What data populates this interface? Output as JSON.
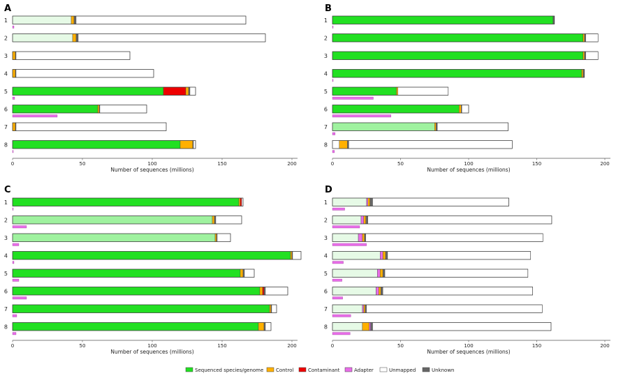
{
  "colors": {
    "sequenced": "#22e022",
    "sequenced_light": "#9ff29f",
    "sequenced_pale": "#e6fae6",
    "control": "#ffb000",
    "contaminant": "#ee0000",
    "adapter": "#e86de8",
    "unmapped": "#ffffff",
    "unknown": "#666666"
  },
  "legend": [
    {
      "key": "sequenced",
      "label": "Sequenced species/genome"
    },
    {
      "key": "control",
      "label": "Control"
    },
    {
      "key": "contaminant",
      "label": "Contaminant"
    },
    {
      "key": "adapter",
      "label": "Adapter"
    },
    {
      "key": "unmapped",
      "label": "Unmapped"
    },
    {
      "key": "unknown",
      "label": "Unknown"
    }
  ],
  "chart_data": [
    {
      "panel": "A",
      "type": "bar",
      "stacked": true,
      "orientation": "horizontal",
      "xlabel": "Number of sequences (millions)",
      "xlim": [
        0,
        200
      ],
      "xticks": [
        "0",
        "50",
        "100",
        "150",
        "200"
      ],
      "categories": [
        "1",
        "2",
        "3",
        "4",
        "5",
        "6",
        "7",
        "8"
      ],
      "series": [
        {
          "name": "Sequenced species/genome",
          "shade": "sequenced_pale",
          "rows": [
            0,
            1
          ]
        },
        {
          "name": "Sequenced species/genome",
          "shade": "sequenced",
          "rows": [
            4,
            5,
            7
          ]
        }
      ],
      "bars": [
        {
          "seg": [
            [
              "sequenced_pale",
              42
            ],
            [
              "control",
              2
            ],
            [
              "unknown",
              1.5
            ],
            [
              "unmapped",
              121.5
            ]
          ],
          "adapter": 1
        },
        {
          "seg": [
            [
              "sequenced_pale",
              43
            ],
            [
              "control",
              2.5
            ],
            [
              "unknown",
              1.5
            ],
            [
              "unmapped",
              134
            ]
          ],
          "adapter": 0
        },
        {
          "seg": [
            [
              "control",
              2
            ],
            [
              "unknown",
              0.5
            ],
            [
              "unmapped",
              81.5
            ]
          ],
          "adapter": 0
        },
        {
          "seg": [
            [
              "control",
              2
            ],
            [
              "unknown",
              0.5
            ],
            [
              "unmapped",
              98.5
            ]
          ],
          "adapter": 0
        },
        {
          "seg": [
            [
              "sequenced",
              108
            ],
            [
              "contaminant",
              16
            ],
            [
              "control",
              2
            ],
            [
              "unknown",
              1
            ],
            [
              "unmapped",
              4
            ]
          ],
          "adapter": 1.5
        },
        {
          "seg": [
            [
              "sequenced",
              61
            ],
            [
              "control",
              1
            ],
            [
              "unknown",
              0.5
            ],
            [
              "unmapped",
              33.5
            ]
          ],
          "adapter": 32
        },
        {
          "seg": [
            [
              "control",
              2
            ],
            [
              "unknown",
              0.5
            ],
            [
              "unmapped",
              107.5
            ]
          ],
          "adapter": 0
        },
        {
          "seg": [
            [
              "sequenced",
              120
            ],
            [
              "control",
              9
            ],
            [
              "unknown",
              0.5
            ],
            [
              "unmapped",
              1.5
            ]
          ],
          "adapter": 0.5
        }
      ]
    },
    {
      "panel": "B",
      "type": "bar",
      "stacked": true,
      "orientation": "horizontal",
      "xlabel": "Number of sequences (millions)",
      "xlim": [
        0,
        200
      ],
      "xticks": [
        "0",
        "50",
        "100",
        "150",
        "200"
      ],
      "categories": [
        "1",
        "2",
        "3",
        "4",
        "5",
        "6",
        "7",
        "8"
      ],
      "bars": [
        {
          "seg": [
            [
              "sequenced",
              162
            ],
            [
              "unknown",
              1
            ]
          ],
          "adapter": 0.5
        },
        {
          "seg": [
            [
              "sequenced",
              184
            ],
            [
              "control",
              1
            ],
            [
              "unknown",
              1
            ],
            [
              "unmapped",
              9
            ]
          ],
          "adapter": 0
        },
        {
          "seg": [
            [
              "sequenced",
              184
            ],
            [
              "control",
              1
            ],
            [
              "unknown",
              1
            ],
            [
              "unmapped",
              9
            ]
          ],
          "adapter": 0
        },
        {
          "seg": [
            [
              "sequenced",
              183
            ],
            [
              "control",
              1
            ],
            [
              "unknown",
              1
            ]
          ],
          "adapter": 0.5
        },
        {
          "seg": [
            [
              "sequenced",
              47
            ],
            [
              "control",
              1
            ],
            [
              "unmapped",
              37
            ]
          ],
          "adapter": 30
        },
        {
          "seg": [
            [
              "sequenced",
              93
            ],
            [
              "control",
              1.5
            ],
            [
              "unknown",
              0.5
            ],
            [
              "unmapped",
              5
            ]
          ],
          "adapter": 43
        },
        {
          "seg": [
            [
              "sequenced_light",
              75
            ],
            [
              "control",
              1
            ],
            [
              "unknown",
              1
            ],
            [
              "unmapped",
              52
            ]
          ],
          "adapter": 2
        },
        {
          "seg": [
            [
              "unmapped",
              5
            ],
            [
              "control",
              6
            ],
            [
              "unknown",
              1
            ],
            [
              "unmapped",
              120
            ]
          ],
          "adapter": 1.5
        }
      ]
    },
    {
      "panel": "C",
      "type": "bar",
      "stacked": true,
      "orientation": "horizontal",
      "xlabel": "Number of sequences (millions)",
      "xlim": [
        0,
        200
      ],
      "xticks": [
        "0",
        "50",
        "100",
        "150",
        "200"
      ],
      "categories": [
        "1",
        "2",
        "3",
        "4",
        "5",
        "6",
        "7",
        "8"
      ],
      "bars": [
        {
          "seg": [
            [
              "sequenced",
              162
            ],
            [
              "control",
              1
            ],
            [
              "contaminant",
              1
            ],
            [
              "unmapped",
              1
            ]
          ],
          "adapter": 0.5
        },
        {
          "seg": [
            [
              "sequenced_light",
              143
            ],
            [
              "control",
              1.5
            ],
            [
              "unknown",
              1
            ],
            [
              "unmapped",
              18.5
            ]
          ],
          "adapter": 10
        },
        {
          "seg": [
            [
              "sequenced_light",
              145
            ],
            [
              "control",
              1
            ],
            [
              "unknown",
              0.5
            ],
            [
              "unmapped",
              9.5
            ]
          ],
          "adapter": 4.5
        },
        {
          "seg": [
            [
              "sequenced",
              199
            ],
            [
              "control",
              1
            ],
            [
              "unknown",
              0.5
            ],
            [
              "unmapped",
              6
            ]
          ],
          "adapter": 1
        },
        {
          "seg": [
            [
              "sequenced",
              163
            ],
            [
              "control",
              2
            ],
            [
              "unknown",
              1
            ],
            [
              "unmapped",
              7
            ]
          ],
          "adapter": 4.5
        },
        {
          "seg": [
            [
              "sequenced",
              177
            ],
            [
              "control",
              2
            ],
            [
              "contaminant",
              1
            ],
            [
              "unknown",
              1
            ],
            [
              "unmapped",
              16
            ]
          ],
          "adapter": 10
        },
        {
          "seg": [
            [
              "sequenced",
              184
            ],
            [
              "control",
              1
            ],
            [
              "unknown",
              0.5
            ],
            [
              "unmapped",
              3.5
            ]
          ],
          "adapter": 3
        },
        {
          "seg": [
            [
              "sequenced",
              176
            ],
            [
              "control",
              4
            ],
            [
              "unknown",
              1
            ],
            [
              "unmapped",
              4
            ]
          ],
          "adapter": 2.5
        }
      ]
    },
    {
      "panel": "D",
      "type": "bar",
      "stacked": true,
      "orientation": "horizontal",
      "xlabel": "Number of sequences (millions)",
      "xlim": [
        0,
        200
      ],
      "xticks": [
        "0",
        "50",
        "100",
        "150",
        "200"
      ],
      "categories": [
        "1",
        "2",
        "3",
        "4",
        "5",
        "6",
        "7",
        "8"
      ],
      "bars": [
        {
          "seg": [
            [
              "sequenced_pale",
              25
            ],
            [
              "adapter",
              1
            ],
            [
              "control",
              1.5
            ],
            [
              "unknown",
              2
            ],
            [
              "unmapped",
              100
            ]
          ],
          "adapter": 9
        },
        {
          "seg": [
            [
              "sequenced_pale",
              21
            ],
            [
              "adapter",
              2
            ],
            [
              "control",
              1.5
            ],
            [
              "unknown",
              1.5
            ],
            [
              "unmapped",
              135
            ]
          ],
          "adapter": 20
        },
        {
          "seg": [
            [
              "sequenced_pale",
              19
            ],
            [
              "adapter",
              3
            ],
            [
              "control",
              1.5
            ],
            [
              "unknown",
              1
            ],
            [
              "unmapped",
              130
            ]
          ],
          "adapter": 25
        },
        {
          "seg": [
            [
              "sequenced_pale",
              35
            ],
            [
              "adapter",
              2
            ],
            [
              "control",
              2
            ],
            [
              "unknown",
              1.5
            ],
            [
              "unmapped",
              105
            ]
          ],
          "adapter": 8
        },
        {
          "seg": [
            [
              "sequenced_pale",
              33
            ],
            [
              "adapter",
              2
            ],
            [
              "control",
              2
            ],
            [
              "unknown",
              1.5
            ],
            [
              "unmapped",
              105
            ]
          ],
          "adapter": 7
        },
        {
          "seg": [
            [
              "sequenced_pale",
              32
            ],
            [
              "adapter",
              2
            ],
            [
              "control",
              1.5
            ],
            [
              "unknown",
              1.5
            ],
            [
              "unmapped",
              110
            ]
          ],
          "adapter": 7.5
        },
        {
          "seg": [
            [
              "sequenced_pale",
              22
            ],
            [
              "adapter",
              1
            ],
            [
              "control",
              1
            ],
            [
              "unknown",
              1
            ],
            [
              "unmapped",
              129
            ]
          ],
          "adapter": 13.5
        },
        {
          "seg": [
            [
              "sequenced_pale",
              22
            ],
            [
              "control",
              5
            ],
            [
              "adapter",
              1
            ],
            [
              "unknown",
              1.5
            ],
            [
              "unmapped",
              131
            ]
          ],
          "adapter": 13
        }
      ]
    }
  ]
}
